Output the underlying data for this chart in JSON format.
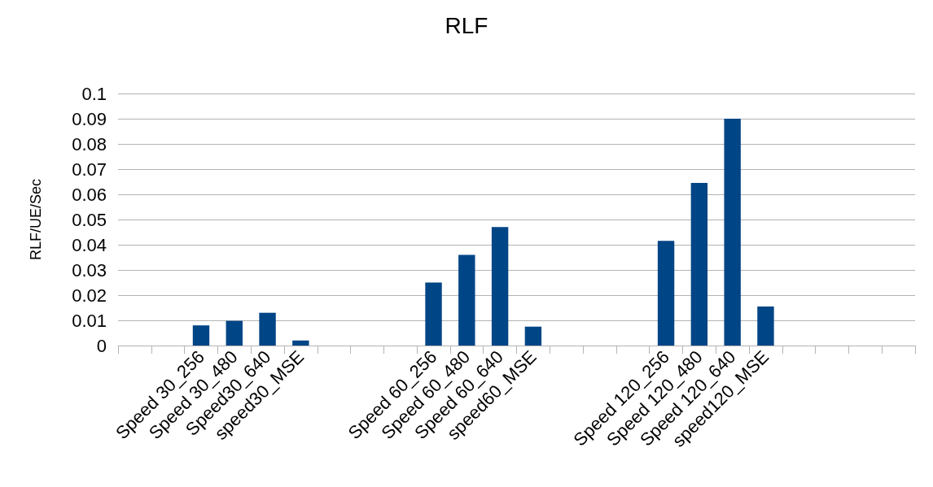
{
  "chart_data": {
    "type": "bar",
    "title": "RLF",
    "ylabel": "RLF/UE/Sec",
    "categories": [
      null,
      null,
      "Speed 30_256",
      "Speed 30_480",
      "Speed30_640",
      "speed30_MSE",
      null,
      null,
      null,
      "Speed 60_256",
      "Speed 60_480",
      "Speed 60_640",
      "speed60_MSE",
      null,
      null,
      null,
      "Speed 120_256",
      "Speed 120_480",
      "Speed 120_640",
      "speed120_MSE",
      null,
      null,
      null,
      null
    ],
    "values": [
      null,
      null,
      0.008,
      0.0098,
      0.013,
      0.002,
      null,
      null,
      null,
      0.025,
      0.036,
      0.047,
      0.0075,
      null,
      null,
      null,
      0.0415,
      0.0645,
      0.09,
      0.0155,
      null,
      null,
      null,
      null
    ],
    "color": "#004586",
    "ylim": [
      0,
      0.1
    ],
    "yticks": [
      0,
      0.01,
      0.02,
      0.03,
      0.04,
      0.05,
      0.06,
      0.07,
      0.08,
      0.09,
      0.1
    ],
    "grid": "y"
  }
}
